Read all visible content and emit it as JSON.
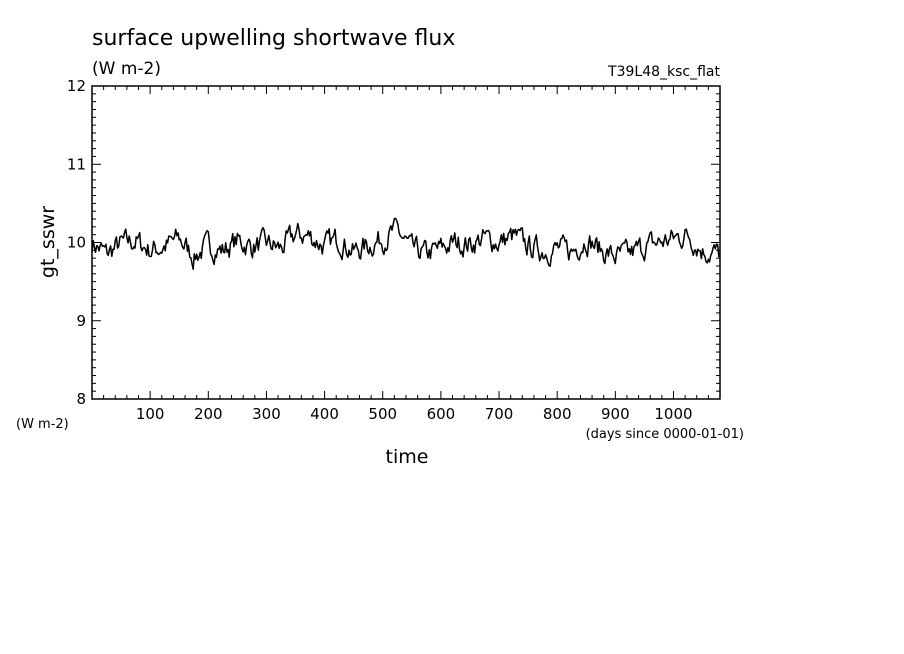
{
  "chart_data": {
    "type": "line",
    "title": "surface upwelling shortwave flux",
    "title_units": "(W m-2)",
    "run_label": "T39L48_ksc_flat",
    "xlabel": "time",
    "x_units": "(days since 0000-01-01)",
    "ylabel": "gt_sswr",
    "y_units": "(W m-2)",
    "xlim": [
      0,
      1080
    ],
    "ylim": [
      8,
      12
    ],
    "x_ticks": [
      100,
      200,
      300,
      400,
      500,
      600,
      700,
      800,
      900,
      1000
    ],
    "y_ticks": [
      8,
      9,
      10,
      11,
      12
    ],
    "grid": false,
    "series": [
      {
        "color": "#000000",
        "x": [
          0,
          25,
          50,
          75,
          100,
          125,
          150,
          175,
          200,
          225,
          250,
          275,
          300,
          325,
          350,
          375,
          400,
          425,
          450,
          475,
          500,
          525,
          550,
          575,
          600,
          625,
          650,
          675,
          700,
          725,
          750,
          775,
          800,
          825,
          850,
          875,
          900,
          925,
          950,
          975,
          1000,
          1025,
          1050,
          1080
        ],
        "y": [
          10.0,
          9.85,
          9.98,
          10.02,
          9.9,
          9.95,
          10.05,
          9.82,
          9.96,
          9.9,
          10.02,
          9.95,
          9.98,
          9.92,
          10.1,
          10.08,
          9.95,
          10.05,
          9.88,
          9.96,
          10.05,
          10.15,
          9.9,
          9.85,
          9.92,
          10.0,
          9.98,
          10.05,
          10.0,
          10.08,
          9.95,
          9.9,
          9.92,
          9.88,
          10.05,
          9.9,
          9.82,
          9.85,
          9.95,
          10.0,
          10.05,
          10.1,
          9.9,
          9.85
        ]
      }
    ]
  }
}
